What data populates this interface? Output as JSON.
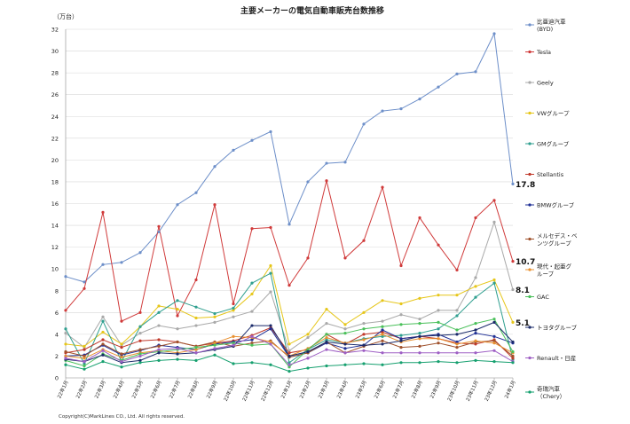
{
  "chart_data": {
    "type": "line",
    "title": "主要メーカーの電気自動車販売台数推移",
    "ylabel": "（万台）",
    "xlabel": "",
    "ylim": [
      0,
      32
    ],
    "yticks": [
      0,
      2,
      4,
      6,
      8,
      10,
      12,
      14,
      16,
      18,
      20,
      22,
      24,
      26,
      28,
      30,
      32
    ],
    "grid": "horizontal",
    "legend_position": "right",
    "categories": [
      "22年1月",
      "22年2月",
      "22年3月",
      "22年4月",
      "22年5月",
      "22年6月",
      "22年7月",
      "22年8月",
      "22年9月",
      "22年10月",
      "22年11月",
      "22年12月",
      "23年1月",
      "23年2月",
      "23年3月",
      "23年4月",
      "23年5月",
      "23年6月",
      "23年7月",
      "23年8月",
      "23年9月",
      "23年10月",
      "23年11月",
      "23年12月",
      "24年1月"
    ],
    "series": [
      {
        "name": "比亜迪汽車(BYD)",
        "color": "#6d8fc9",
        "values": [
          9.3,
          8.8,
          10.4,
          10.6,
          11.5,
          13.4,
          15.9,
          17.0,
          19.4,
          20.9,
          21.8,
          22.6,
          14.1,
          18.0,
          19.7,
          19.8,
          23.3,
          24.5,
          24.7,
          25.6,
          26.7,
          27.9,
          28.1,
          31.6,
          17.8
        ]
      },
      {
        "name": "Tesla",
        "color": "#d03a3a",
        "values": [
          6.2,
          8.2,
          15.2,
          5.2,
          6.0,
          13.9,
          5.7,
          9.0,
          15.9,
          6.8,
          13.7,
          13.8,
          8.5,
          11.0,
          18.1,
          11.0,
          12.6,
          17.5,
          10.3,
          14.7,
          12.2,
          9.9,
          14.7,
          16.3,
          10.7
        ]
      },
      {
        "name": "Geely",
        "color": "#a9a9a9",
        "values": [
          4.1,
          2.8,
          5.6,
          3.0,
          4.1,
          4.8,
          4.5,
          4.8,
          5.1,
          5.6,
          6.1,
          7.9,
          2.5,
          3.7,
          5.0,
          4.5,
          5.0,
          5.2,
          5.8,
          5.4,
          6.2,
          6.2,
          9.2,
          14.3,
          8.1
        ]
      },
      {
        "name": "VWグループ",
        "color": "#e6c619",
        "values": [
          3.1,
          2.9,
          4.2,
          3.1,
          4.7,
          6.6,
          6.3,
          5.5,
          5.6,
          6.2,
          7.7,
          10.3,
          3.1,
          4.0,
          6.3,
          4.9,
          6.0,
          7.1,
          6.8,
          7.3,
          7.6,
          7.6,
          8.4,
          9.0,
          5.1
        ]
      },
      {
        "name": "GMグループ",
        "color": "#2f9f8f",
        "values": [
          4.5,
          1.3,
          5.2,
          1.5,
          4.7,
          6.0,
          7.1,
          6.5,
          5.9,
          6.4,
          8.7,
          9.6,
          1.4,
          2.6,
          3.5,
          3.2,
          3.6,
          3.8,
          3.9,
          4.1,
          4.5,
          5.7,
          7.4,
          8.7,
          1.7
        ]
      },
      {
        "name": "Stellantis",
        "color": "#c0392b",
        "values": [
          2.3,
          2.6,
          3.5,
          2.8,
          3.4,
          3.5,
          3.3,
          2.9,
          3.2,
          3.4,
          3.9,
          4.6,
          2.3,
          2.6,
          4.0,
          3.1,
          4.0,
          4.2,
          3.6,
          3.8,
          3.6,
          3.2,
          3.1,
          3.5,
          1.8
        ]
      },
      {
        "name": "BMWグループ",
        "color": "#1f2f95",
        "values": [
          2.0,
          2.1,
          3.0,
          2.1,
          2.5,
          3.0,
          2.8,
          2.6,
          3.1,
          3.3,
          3.5,
          4.5,
          1.9,
          2.3,
          3.2,
          2.7,
          3.0,
          4.4,
          3.6,
          3.8,
          4.0,
          3.3,
          4.1,
          3.8,
          3.2
        ]
      },
      {
        "name": "メルセデス・ベンツグループ",
        "color": "#a0522d",
        "values": [
          2.4,
          2.0,
          3.1,
          2.2,
          2.6,
          2.9,
          3.3,
          2.9,
          3.3,
          2.9,
          3.2,
          3.4,
          1.9,
          2.3,
          3.3,
          2.3,
          2.9,
          3.4,
          2.8,
          2.9,
          3.2,
          2.8,
          3.3,
          3.4,
          2.0
        ]
      },
      {
        "name": "現代・起亜グループ",
        "color": "#e89030",
        "values": [
          2.0,
          1.8,
          2.6,
          1.9,
          2.3,
          2.5,
          2.3,
          2.6,
          3.2,
          3.8,
          3.7,
          3.3,
          2.0,
          2.7,
          3.7,
          3.2,
          3.5,
          4.0,
          3.3,
          3.6,
          3.6,
          3.1,
          3.4,
          3.2,
          2.3
        ]
      },
      {
        "name": "GAC",
        "color": "#4ac05a",
        "values": [
          1.6,
          1.1,
          2.2,
          1.6,
          2.2,
          2.4,
          2.6,
          2.8,
          3.0,
          3.2,
          3.0,
          3.1,
          1.0,
          2.6,
          4.0,
          4.1,
          4.5,
          4.7,
          4.9,
          5.0,
          5.1,
          4.4,
          5.0,
          5.4,
          2.4
        ]
      },
      {
        "name": "トヨタグループ",
        "color": "#1a2a6a",
        "values": [
          1.7,
          1.5,
          2.1,
          1.4,
          1.6,
          2.3,
          2.2,
          2.3,
          2.6,
          2.9,
          4.8,
          4.8,
          2.0,
          2.4,
          3.3,
          3.1,
          3.0,
          3.1,
          3.4,
          3.8,
          3.9,
          4.0,
          4.4,
          5.1,
          3.3
        ]
      },
      {
        "name": "Renault・日産",
        "color": "#9e5fc4",
        "values": [
          1.8,
          1.5,
          2.5,
          1.5,
          2.0,
          2.6,
          2.7,
          2.3,
          2.7,
          3.0,
          3.8,
          3.1,
          1.2,
          1.8,
          2.6,
          2.3,
          2.5,
          2.3,
          2.3,
          2.3,
          2.3,
          2.3,
          2.3,
          2.5,
          1.5
        ]
      },
      {
        "name": "奇瑞汽車(Chery)",
        "color": "#16a06f",
        "values": [
          1.2,
          0.8,
          1.5,
          1.0,
          1.4,
          1.6,
          1.7,
          1.6,
          2.1,
          1.3,
          1.4,
          1.2,
          0.6,
          0.9,
          1.1,
          1.2,
          1.3,
          1.2,
          1.4,
          1.4,
          1.5,
          1.4,
          1.6,
          1.5,
          1.4
        ]
      }
    ],
    "legend_entries": [
      {
        "series": 0,
        "line1": "比亜迪汽車",
        "line2": "(BYD)"
      },
      {
        "series": 1,
        "line1": "Tesla",
        "line2": ""
      },
      {
        "series": 2,
        "line1": "Geely",
        "line2": ""
      },
      {
        "series": 3,
        "line1": "VWグループ",
        "line2": ""
      },
      {
        "series": 4,
        "line1": "GMグループ",
        "line2": ""
      },
      {
        "series": 5,
        "line1": "Stellantis",
        "line2": ""
      },
      {
        "series": 6,
        "line1": "BMWグループ",
        "line2": ""
      },
      {
        "series": 7,
        "line1": "メルセデス・ベ",
        "line2": "ンツグループ"
      },
      {
        "series": 8,
        "line1": "現代・起亜グ",
        "line2": "ループ"
      },
      {
        "series": 9,
        "line1": "GAC",
        "line2": ""
      },
      {
        "series": 10,
        "line1": "トヨタグループ",
        "line2": ""
      },
      {
        "series": 11,
        "line1": "Renault・日産",
        "line2": ""
      },
      {
        "series": 12,
        "line1": "奇瑞汽車",
        "line2": "（Chery）"
      }
    ],
    "annotations": [
      {
        "text": "17.8",
        "series": 0
      },
      {
        "text": "10.7",
        "series": 1
      },
      {
        "text": "8.1",
        "series": 2
      },
      {
        "text": "5.1",
        "series": 3
      }
    ],
    "copyright": "Copyright(C)MarkLines CO., Ltd. All rights reserved."
  }
}
